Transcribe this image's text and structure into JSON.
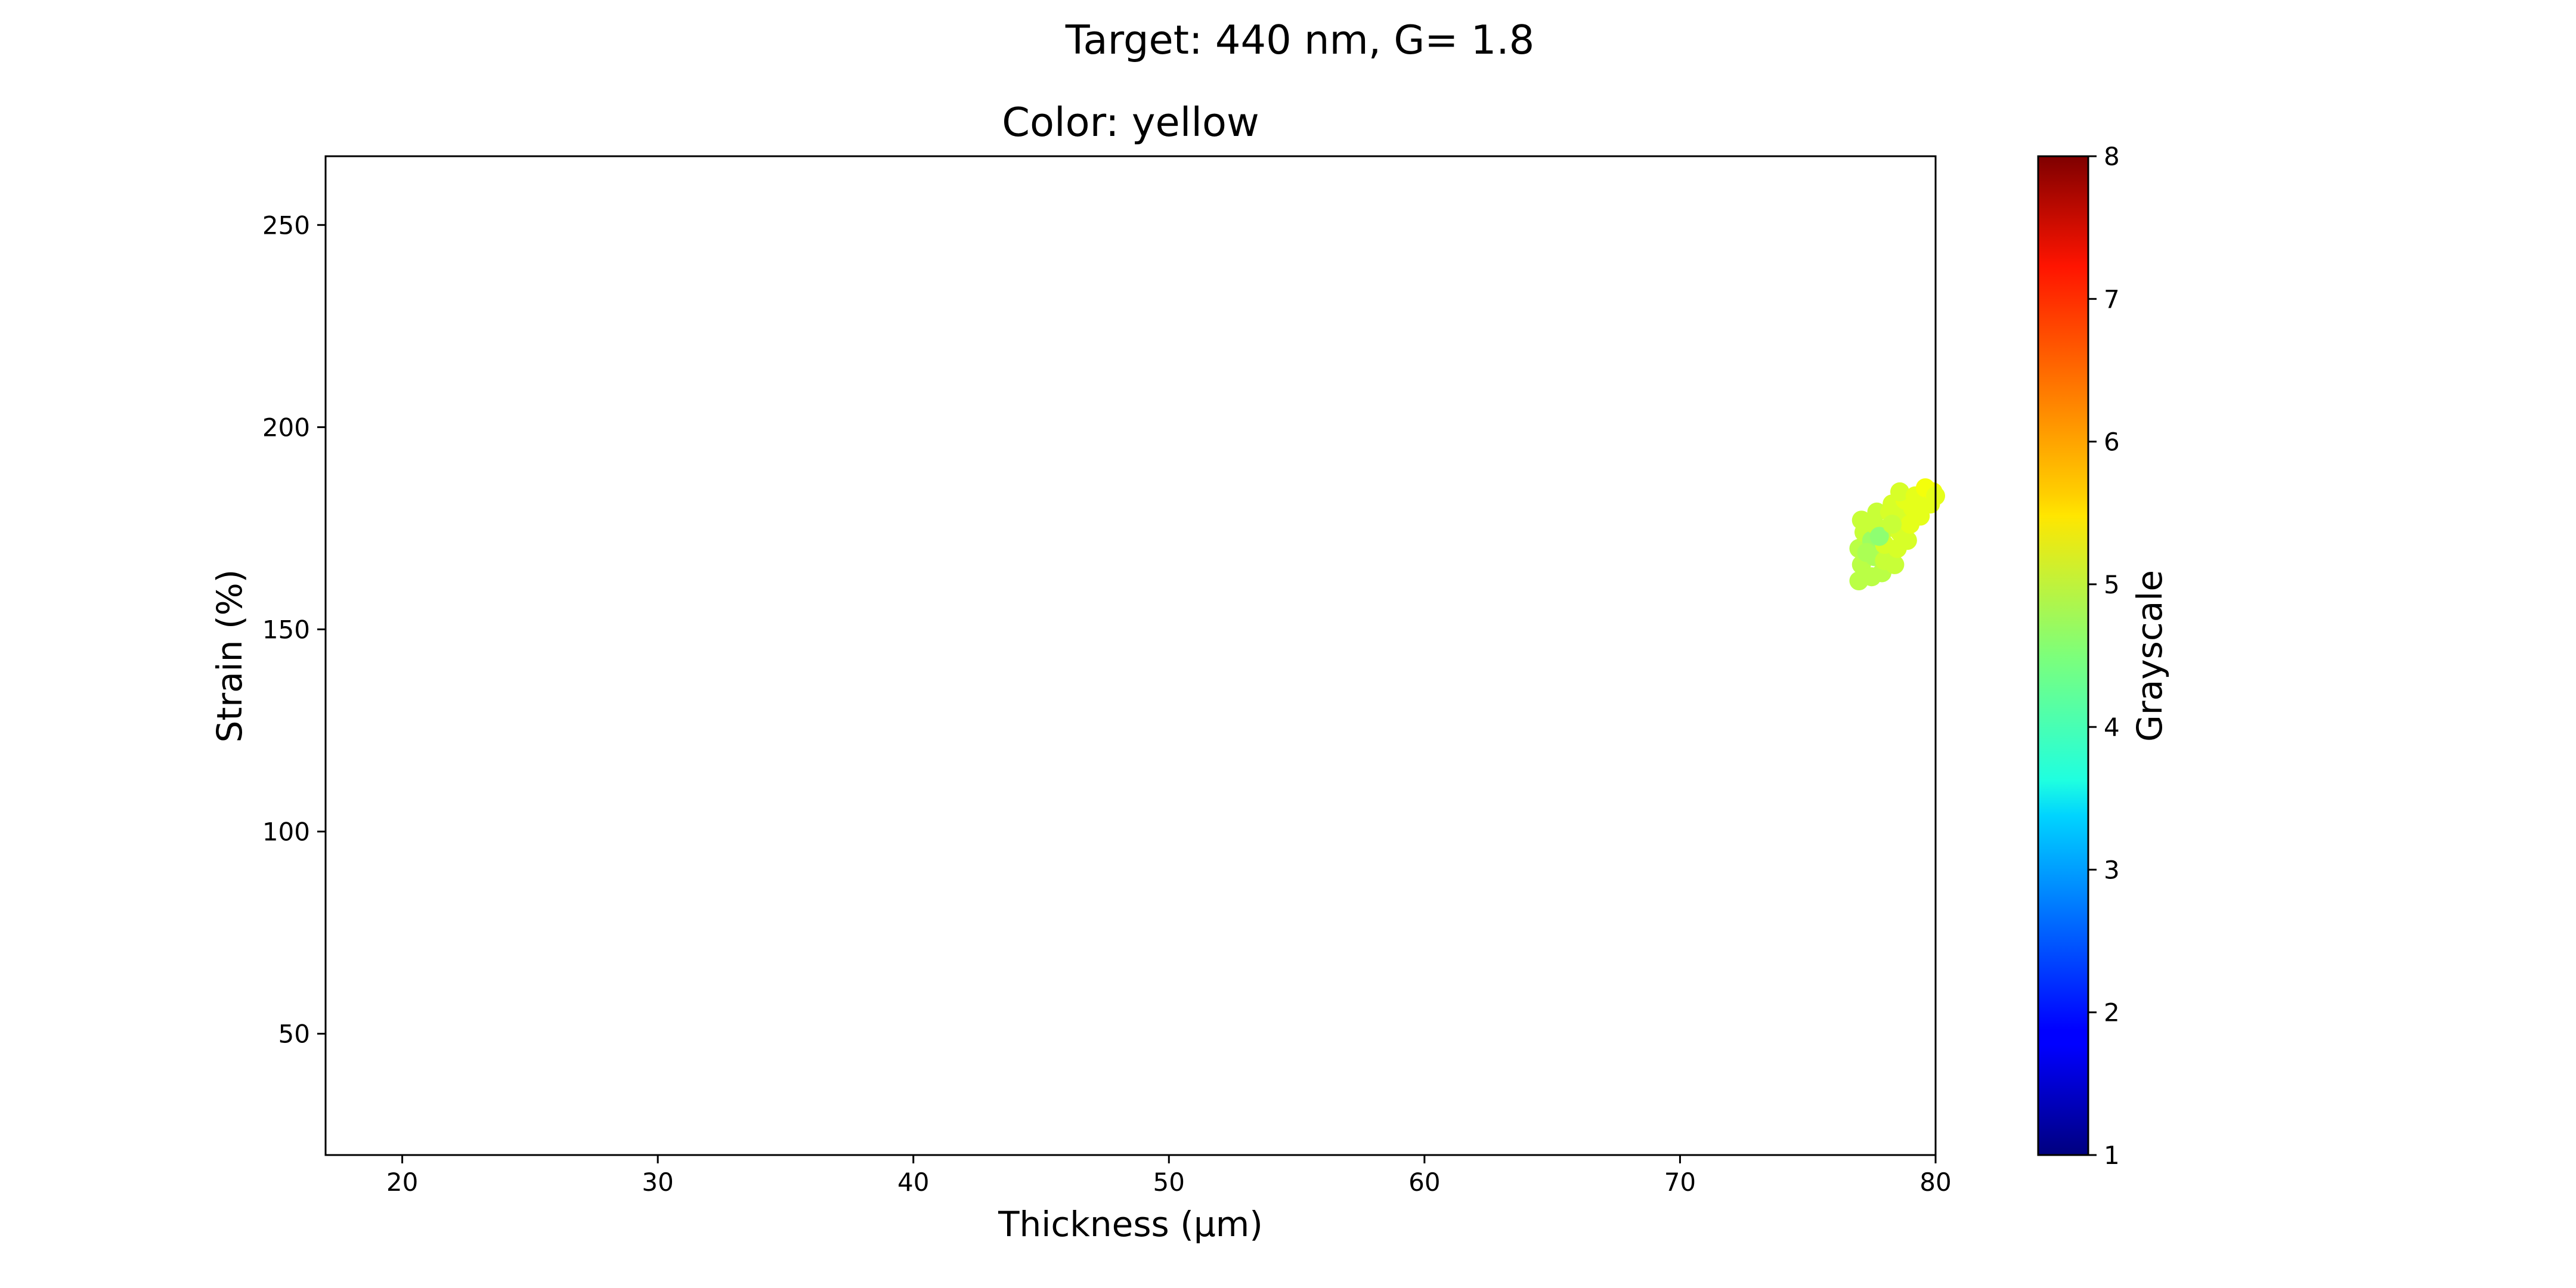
{
  "figure": {
    "suptitle": "Target: 440 nm, G= 1.8"
  },
  "chart_data": {
    "type": "scatter",
    "title": "Color: yellow",
    "xlabel": "Thickness (μm)",
    "ylabel": "Strain (%)",
    "xlim": [
      17,
      80
    ],
    "ylim": [
      20,
      267
    ],
    "xticks": [
      20,
      30,
      40,
      50,
      60,
      70,
      80
    ],
    "yticks": [
      50,
      100,
      150,
      200,
      250
    ],
    "grid": false,
    "colorbar": {
      "label": "Grayscale",
      "min": 1,
      "max": 8,
      "ticks": [
        1,
        2,
        3,
        4,
        5,
        6,
        7,
        8
      ],
      "colormap": "jet"
    },
    "points": [
      {
        "x": 77.0,
        "y": 162,
        "c": 4.9
      },
      {
        "x": 77.1,
        "y": 166,
        "c": 4.9
      },
      {
        "x": 77.0,
        "y": 170,
        "c": 4.9
      },
      {
        "x": 77.2,
        "y": 174,
        "c": 5.0
      },
      {
        "x": 77.1,
        "y": 177,
        "c": 5.0
      },
      {
        "x": 77.5,
        "y": 163,
        "c": 4.9
      },
      {
        "x": 77.6,
        "y": 168,
        "c": 4.8
      },
      {
        "x": 77.5,
        "y": 172,
        "c": 4.7
      },
      {
        "x": 77.6,
        "y": 176,
        "c": 5.0
      },
      {
        "x": 77.7,
        "y": 179,
        "c": 5.0
      },
      {
        "x": 77.9,
        "y": 164,
        "c": 4.9
      },
      {
        "x": 78.0,
        "y": 167,
        "c": 5.0
      },
      {
        "x": 78.0,
        "y": 171,
        "c": 5.1
      },
      {
        "x": 78.1,
        "y": 175,
        "c": 5.0
      },
      {
        "x": 78.2,
        "y": 179,
        "c": 5.1
      },
      {
        "x": 78.3,
        "y": 181,
        "c": 5.1
      },
      {
        "x": 78.4,
        "y": 166,
        "c": 5.0
      },
      {
        "x": 78.5,
        "y": 170,
        "c": 5.1
      },
      {
        "x": 78.6,
        "y": 174,
        "c": 5.1
      },
      {
        "x": 78.7,
        "y": 178,
        "c": 5.1
      },
      {
        "x": 78.8,
        "y": 182,
        "c": 5.2
      },
      {
        "x": 78.6,
        "y": 184,
        "c": 5.1
      },
      {
        "x": 78.9,
        "y": 172,
        "c": 5.1
      },
      {
        "x": 79.0,
        "y": 176,
        "c": 5.2
      },
      {
        "x": 79.1,
        "y": 180,
        "c": 5.2
      },
      {
        "x": 79.2,
        "y": 183,
        "c": 5.2
      },
      {
        "x": 79.4,
        "y": 178,
        "c": 5.2
      },
      {
        "x": 79.5,
        "y": 182,
        "c": 5.2
      },
      {
        "x": 79.6,
        "y": 185,
        "c": 5.3
      },
      {
        "x": 79.8,
        "y": 181,
        "c": 5.2
      },
      {
        "x": 79.9,
        "y": 184,
        "c": 5.3
      },
      {
        "x": 80.0,
        "y": 183,
        "c": 5.2
      },
      {
        "x": 77.3,
        "y": 169,
        "c": 4.8
      },
      {
        "x": 77.8,
        "y": 173,
        "c": 4.6
      },
      {
        "x": 78.3,
        "y": 176,
        "c": 5.0
      }
    ]
  }
}
